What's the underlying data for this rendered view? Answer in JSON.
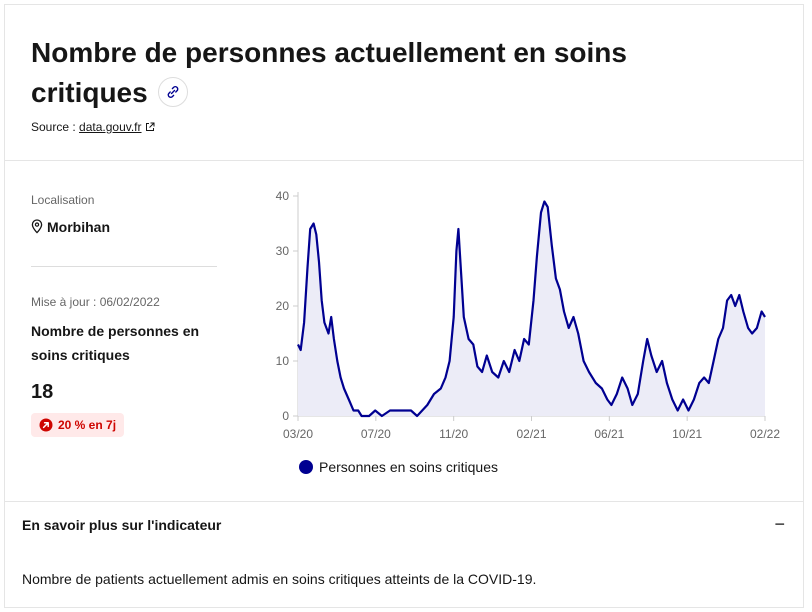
{
  "header": {
    "title": "Nombre de personnes actuellement en soins critiques",
    "source_prefix": "Source : ",
    "source_link": "data.gouv.fr"
  },
  "panel": {
    "location_label": "Localisation",
    "location_value": "Morbihan",
    "update": "Mise à jour : 06/02/2022",
    "metric_title": "Nombre de personnes en soins critiques",
    "metric_value": "18",
    "badge": "20 % en 7j"
  },
  "accordion": {
    "title": "En savoir plus sur l'indicateur",
    "toggle": "−",
    "body": "Nombre de patients actuellement admis en soins critiques atteints de la COVID-19."
  },
  "colors": {
    "line": "#000091",
    "area": "#ececf7",
    "badge_text": "#ce0500",
    "badge_bg": "#ffe9e9"
  },
  "chart_data": {
    "type": "area",
    "x_start": "2020-03-18",
    "x_end": "2022-02-06",
    "ylim": [
      0,
      40
    ],
    "yticks": [
      0,
      10,
      20,
      30,
      40
    ],
    "xticks": [
      "03/20",
      "07/20",
      "11/20",
      "02/21",
      "06/21",
      "10/21",
      "02/22"
    ],
    "series": [
      {
        "name": "Personnes en soins critiques",
        "points": [
          [
            "2020-03-18",
            13
          ],
          [
            "2020-03-22",
            12
          ],
          [
            "2020-03-27",
            17
          ],
          [
            "2020-04-01",
            27
          ],
          [
            "2020-04-05",
            34
          ],
          [
            "2020-04-10",
            35
          ],
          [
            "2020-04-14",
            33
          ],
          [
            "2020-04-18",
            28
          ],
          [
            "2020-04-22",
            21
          ],
          [
            "2020-04-26",
            17
          ],
          [
            "2020-05-02",
            15
          ],
          [
            "2020-05-06",
            18
          ],
          [
            "2020-05-10",
            14
          ],
          [
            "2020-05-15",
            10
          ],
          [
            "2020-05-20",
            7
          ],
          [
            "2020-05-25",
            5
          ],
          [
            "2020-06-01",
            3
          ],
          [
            "2020-06-08",
            1
          ],
          [
            "2020-06-15",
            1
          ],
          [
            "2020-06-20",
            0
          ],
          [
            "2020-07-01",
            0
          ],
          [
            "2020-07-10",
            1
          ],
          [
            "2020-07-20",
            0
          ],
          [
            "2020-08-01",
            1
          ],
          [
            "2020-08-15",
            1
          ],
          [
            "2020-09-01",
            1
          ],
          [
            "2020-09-10",
            0
          ],
          [
            "2020-09-25",
            2
          ],
          [
            "2020-10-05",
            4
          ],
          [
            "2020-10-15",
            5
          ],
          [
            "2020-10-22",
            7
          ],
          [
            "2020-10-28",
            10
          ],
          [
            "2020-11-03",
            18
          ],
          [
            "2020-11-07",
            30
          ],
          [
            "2020-11-10",
            34
          ],
          [
            "2020-11-14",
            26
          ],
          [
            "2020-11-18",
            18
          ],
          [
            "2020-11-25",
            14
          ],
          [
            "2020-12-02",
            13
          ],
          [
            "2020-12-08",
            9
          ],
          [
            "2020-12-15",
            8
          ],
          [
            "2020-12-22",
            11
          ],
          [
            "2020-12-30",
            8
          ],
          [
            "2021-01-08",
            7
          ],
          [
            "2021-01-16",
            10
          ],
          [
            "2021-01-24",
            8
          ],
          [
            "2021-02-01",
            12
          ],
          [
            "2021-02-08",
            10
          ],
          [
            "2021-02-15",
            14
          ],
          [
            "2021-02-22",
            13
          ],
          [
            "2021-03-01",
            21
          ],
          [
            "2021-03-06",
            29
          ],
          [
            "2021-03-12",
            37
          ],
          [
            "2021-03-17",
            39
          ],
          [
            "2021-03-22",
            38
          ],
          [
            "2021-03-28",
            31
          ],
          [
            "2021-04-03",
            25
          ],
          [
            "2021-04-09",
            23
          ],
          [
            "2021-04-15",
            19
          ],
          [
            "2021-04-22",
            16
          ],
          [
            "2021-04-29",
            18
          ],
          [
            "2021-05-06",
            15
          ],
          [
            "2021-05-14",
            10
          ],
          [
            "2021-05-22",
            8
          ],
          [
            "2021-06-01",
            6
          ],
          [
            "2021-06-10",
            5
          ],
          [
            "2021-06-18",
            3
          ],
          [
            "2021-06-24",
            2
          ],
          [
            "2021-07-02",
            4
          ],
          [
            "2021-07-10",
            7
          ],
          [
            "2021-07-18",
            5
          ],
          [
            "2021-07-25",
            2
          ],
          [
            "2021-08-02",
            4
          ],
          [
            "2021-08-10",
            10
          ],
          [
            "2021-08-16",
            14
          ],
          [
            "2021-08-22",
            11
          ],
          [
            "2021-08-30",
            8
          ],
          [
            "2021-09-07",
            10
          ],
          [
            "2021-09-14",
            6
          ],
          [
            "2021-09-22",
            3
          ],
          [
            "2021-09-30",
            1
          ],
          [
            "2021-10-08",
            3
          ],
          [
            "2021-10-16",
            1
          ],
          [
            "2021-10-24",
            3
          ],
          [
            "2021-11-01",
            6
          ],
          [
            "2021-11-08",
            7
          ],
          [
            "2021-11-15",
            6
          ],
          [
            "2021-11-22",
            10
          ],
          [
            "2021-11-29",
            14
          ],
          [
            "2021-12-06",
            16
          ],
          [
            "2021-12-12",
            21
          ],
          [
            "2021-12-18",
            22
          ],
          [
            "2021-12-24",
            20
          ],
          [
            "2021-12-30",
            22
          ],
          [
            "2022-01-05",
            19
          ],
          [
            "2022-01-12",
            16
          ],
          [
            "2022-01-18",
            15
          ],
          [
            "2022-01-25",
            16
          ],
          [
            "2022-02-01",
            19
          ],
          [
            "2022-02-06",
            18
          ]
        ]
      }
    ],
    "legend_position": "bottom",
    "grid": false
  }
}
